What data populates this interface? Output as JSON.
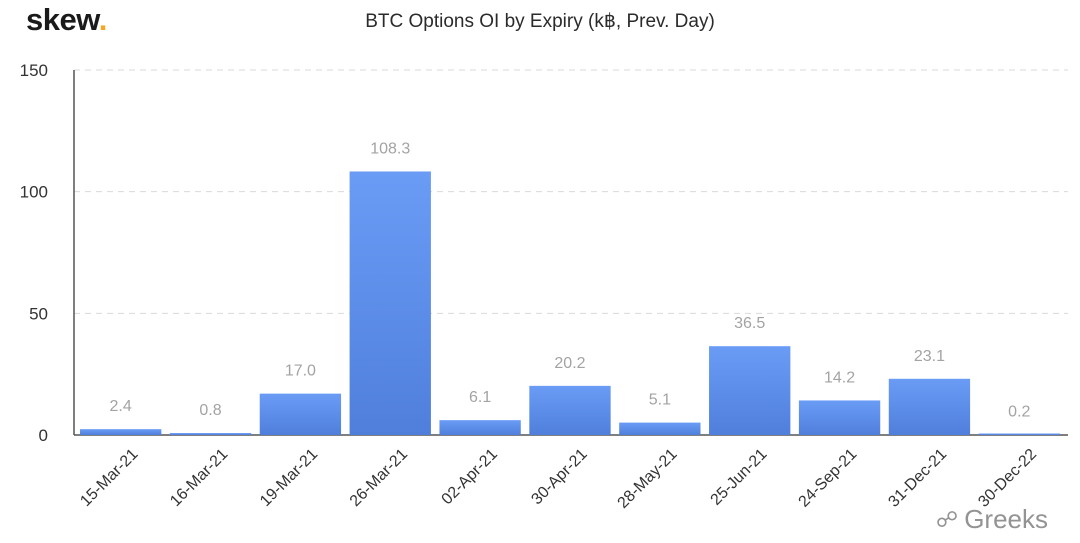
{
  "brand": {
    "logo_text": "skew",
    "logo_dot": "."
  },
  "watermark": {
    "text": "Greeks",
    "icon": "wechat-icon"
  },
  "colors": {
    "bar_top": "#6a9cf6",
    "bar_bottom": "#4f7fdb",
    "label": "#a3a3a3",
    "grid": "#d9d9d9"
  },
  "chart_data": {
    "type": "bar",
    "title": "BTC Options OI by Expiry (k฿, Prev. Day)",
    "xlabel": "",
    "ylabel": "",
    "ylim": [
      0,
      150
    ],
    "yticks": [
      0,
      50,
      100,
      150
    ],
    "grid": true,
    "categories": [
      "15-Mar-21",
      "16-Mar-21",
      "19-Mar-21",
      "26-Mar-21",
      "02-Apr-21",
      "30-Apr-21",
      "28-May-21",
      "25-Jun-21",
      "24-Sep-21",
      "31-Dec-21",
      "30-Dec-22"
    ],
    "values": [
      2.4,
      0.8,
      17.0,
      108.3,
      6.1,
      20.2,
      5.1,
      36.5,
      14.2,
      23.1,
      0.2
    ],
    "value_labels": [
      "2.4",
      "0.8",
      "17.0",
      "108.3",
      "6.1",
      "20.2",
      "5.1",
      "36.5",
      "14.2",
      "23.1",
      "0.2"
    ]
  }
}
